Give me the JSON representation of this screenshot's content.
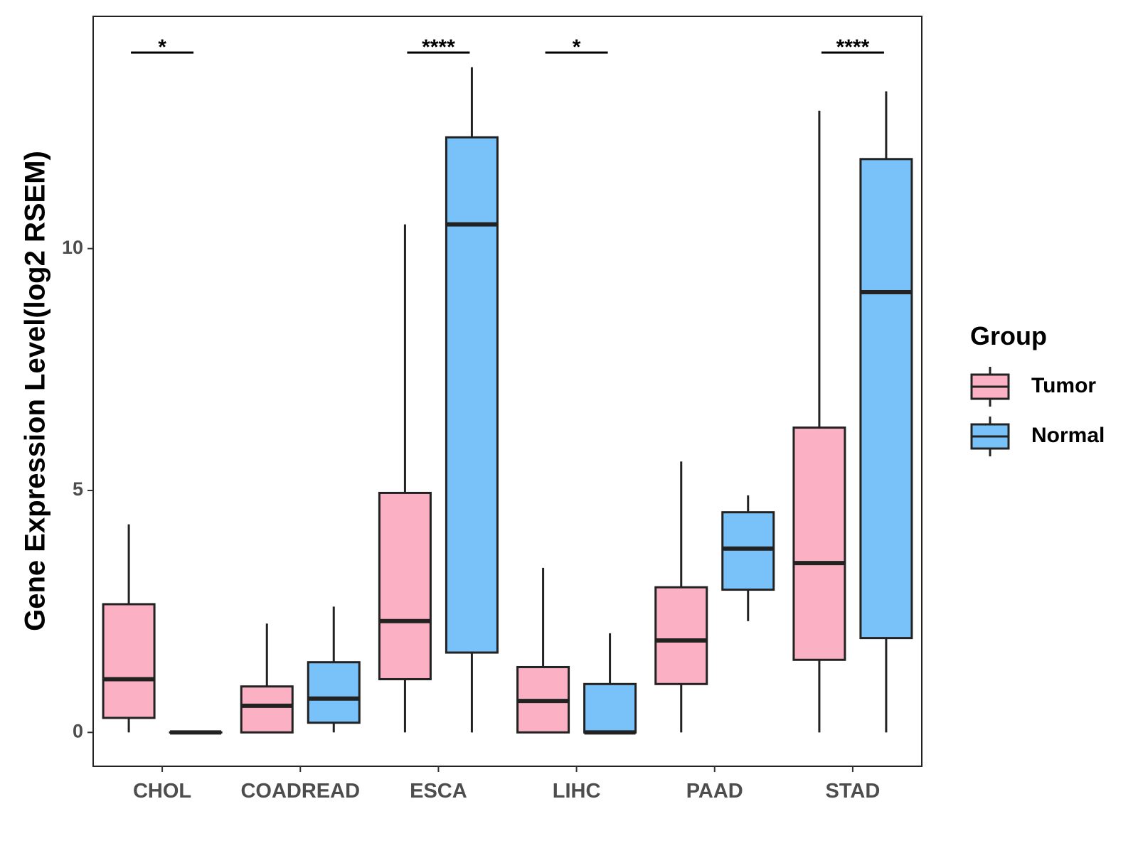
{
  "chart_data": {
    "type": "boxplot",
    "ylabel": "Gene Expression Level(log2 RSEM)",
    "xlabel": "",
    "ylim": [
      -0.7,
      14.8
    ],
    "yticks": [
      0,
      5,
      10
    ],
    "ytick_labels": [
      "0",
      "5",
      "10"
    ],
    "categories": [
      "CHOL",
      "COADREAD",
      "ESCA",
      "LIHC",
      "PAAD",
      "STAD"
    ],
    "legend": {
      "title": "Group",
      "position": "right",
      "entries": [
        {
          "label": "Tumor",
          "color": "#fbb1c3"
        },
        {
          "label": "Normal",
          "color": "#78c1f9"
        }
      ]
    },
    "series": [
      {
        "name": "Tumor",
        "color": "#fbb1c3",
        "boxes": [
          {
            "min": 0,
            "q1": 0.3,
            "median": 1.1,
            "q3": 2.65,
            "max": 4.3
          },
          {
            "min": 0,
            "q1": 0,
            "median": 0.55,
            "q3": 0.95,
            "max": 2.25
          },
          {
            "min": 0,
            "q1": 1.1,
            "median": 2.3,
            "q3": 4.95,
            "max": 10.5
          },
          {
            "min": 0,
            "q1": 0,
            "median": 0.65,
            "q3": 1.35,
            "max": 3.4
          },
          {
            "min": 0,
            "q1": 1.0,
            "median": 1.9,
            "q3": 3.0,
            "max": 5.6
          },
          {
            "min": 0,
            "q1": 1.5,
            "median": 3.5,
            "q3": 6.3,
            "max": 12.85
          }
        ]
      },
      {
        "name": "Normal",
        "color": "#78c1f9",
        "boxes": [
          {
            "min": 0,
            "q1": 0,
            "median": 0,
            "q3": 0,
            "max": 0
          },
          {
            "min": 0,
            "q1": 0.2,
            "median": 0.7,
            "q3": 1.45,
            "max": 2.6
          },
          {
            "min": 0,
            "q1": 1.65,
            "median": 10.5,
            "q3": 12.3,
            "max": 13.75
          },
          {
            "min": 0,
            "q1": 0,
            "median": 0,
            "q3": 1.0,
            "max": 2.05
          },
          {
            "min": 2.3,
            "q1": 2.95,
            "median": 3.8,
            "q3": 4.55,
            "max": 4.9
          },
          {
            "min": 0,
            "q1": 1.95,
            "median": 9.1,
            "q3": 11.85,
            "max": 13.25
          }
        ]
      }
    ],
    "significance": [
      {
        "category": "CHOL",
        "label": "*"
      },
      {
        "category": "COADREAD",
        "label": ""
      },
      {
        "category": "ESCA",
        "label": "****"
      },
      {
        "category": "LIHC",
        "label": "*"
      },
      {
        "category": "PAAD",
        "label": ""
      },
      {
        "category": "STAD",
        "label": "****"
      }
    ]
  }
}
